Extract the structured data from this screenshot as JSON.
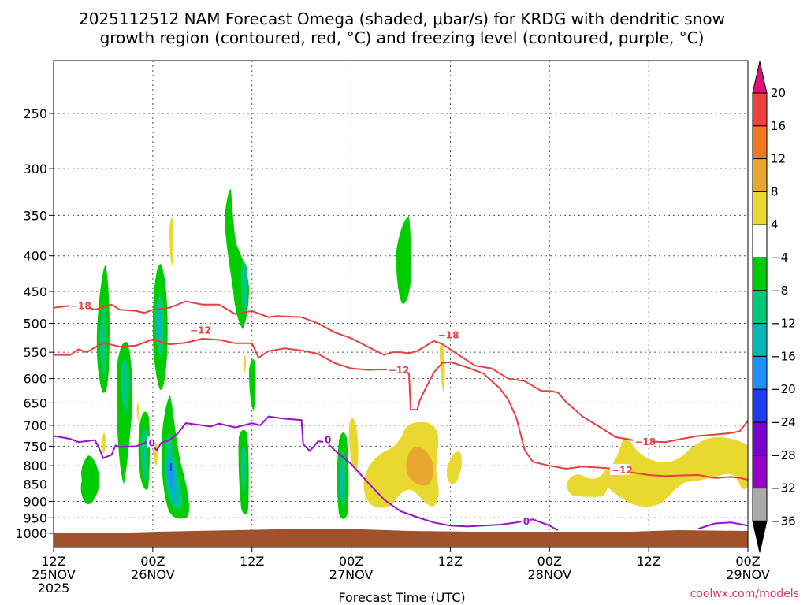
{
  "chart_data": {
    "type": "time-height cross-section",
    "title_line1": "2025112512 NAM Forecast Omega (shaded, μbar/s) for KRDG with dendritic snow",
    "title_line2": "growth region (contoured, red, °C) and freezing level (contoured, purple, °C)",
    "xlabel": "Forecast Time (UTC)",
    "credit": "coolwx.com/models",
    "x_range_hours": [
      0,
      84
    ],
    "y_range_hPa": [
      1000,
      200
    ],
    "y_ticks": [
      250,
      300,
      350,
      400,
      450,
      500,
      550,
      600,
      650,
      700,
      750,
      800,
      850,
      900,
      950,
      1000
    ],
    "x_ticks": [
      {
        "hour": 0,
        "line1": "12Z",
        "line2": "25NOV",
        "line3": "2025"
      },
      {
        "hour": 12,
        "line1": "00Z",
        "line2": "26NOV",
        "line3": ""
      },
      {
        "hour": 24,
        "line1": "12Z",
        "line2": "",
        "line3": ""
      },
      {
        "hour": 36,
        "line1": "00Z",
        "line2": "27NOV",
        "line3": ""
      },
      {
        "hour": 48,
        "line1": "12Z",
        "line2": "",
        "line3": ""
      },
      {
        "hour": 60,
        "line1": "00Z",
        "line2": "28NOV",
        "line3": ""
      },
      {
        "hour": 72,
        "line1": "12Z",
        "line2": "",
        "line3": ""
      },
      {
        "hour": 84,
        "line1": "00Z",
        "line2": "29NOV",
        "line3": ""
      }
    ],
    "colorbar": {
      "ticks": [
        "20",
        "16",
        "12",
        "8",
        "4",
        "−4",
        "−8",
        "−12",
        "−16",
        "−20",
        "−24",
        "−28",
        "−32",
        "−36"
      ],
      "colors": [
        "#ee3f3f",
        "#f07820",
        "#e8a830",
        "#e8d830",
        "#ffffff",
        "#00cc00",
        "#00c87a",
        "#00b8b8",
        "#1e90ff",
        "#1e3cf0",
        "#7a00cc",
        "#9a00c8",
        "#aaaaaa"
      ],
      "top_arrow_color": "#e0107a",
      "bottom_arrow_color": "#000000"
    },
    "contours": [
      {
        "name": "-18",
        "color": "#e84040",
        "points": [
          [
            0,
            475
          ],
          [
            3,
            470
          ],
          [
            5,
            478
          ],
          [
            7,
            470
          ],
          [
            8,
            478
          ],
          [
            10,
            480
          ],
          [
            11,
            483
          ],
          [
            12,
            478
          ],
          [
            14,
            475
          ],
          [
            16,
            465
          ],
          [
            18,
            470
          ],
          [
            20,
            470
          ],
          [
            22,
            485
          ],
          [
            24,
            480
          ],
          [
            26,
            490
          ],
          [
            27,
            488
          ],
          [
            30,
            490
          ],
          [
            32,
            500
          ],
          [
            34,
            515
          ],
          [
            36,
            525
          ],
          [
            38,
            540
          ],
          [
            40,
            555
          ],
          [
            41,
            550
          ],
          [
            42,
            550
          ],
          [
            43,
            552
          ],
          [
            44,
            548
          ],
          [
            46,
            530
          ],
          [
            47,
            535
          ],
          [
            49,
            555
          ],
          [
            51,
            575
          ],
          [
            53,
            580
          ],
          [
            55,
            600
          ],
          [
            57,
            605
          ],
          [
            59,
            625
          ],
          [
            60,
            625
          ],
          [
            61,
            628
          ],
          [
            62,
            648
          ],
          [
            64,
            680
          ],
          [
            66,
            703
          ],
          [
            68,
            728
          ],
          [
            70,
            735
          ],
          [
            72,
            738
          ],
          [
            74,
            740
          ],
          [
            76,
            732
          ],
          [
            78,
            725
          ],
          [
            80,
            722
          ],
          [
            82,
            718
          ],
          [
            83,
            714
          ],
          [
            84,
            690
          ]
        ],
        "labels": [
          {
            "text": "−18",
            "at": [
              2,
              472
            ]
          },
          {
            "text": "−18",
            "at": [
              46.5,
              520
            ]
          },
          {
            "text": "−18",
            "at": [
              70.3,
              740
            ]
          }
        ]
      },
      {
        "name": "-12",
        "color": "#e84040",
        "points": [
          [
            0,
            555
          ],
          [
            2,
            555
          ],
          [
            3,
            545
          ],
          [
            4,
            550
          ],
          [
            6,
            533
          ],
          [
            8,
            540
          ],
          [
            10,
            538
          ],
          [
            12,
            527
          ],
          [
            14,
            536
          ],
          [
            16,
            533
          ],
          [
            18,
            526
          ],
          [
            20,
            528
          ],
          [
            22,
            534
          ],
          [
            24,
            534
          ],
          [
            24.8,
            560
          ],
          [
            26,
            548
          ],
          [
            28,
            543
          ],
          [
            30,
            547
          ],
          [
            32,
            553
          ],
          [
            34,
            570
          ],
          [
            36,
            580
          ],
          [
            38,
            583
          ],
          [
            40,
            582
          ],
          [
            42,
            588
          ],
          [
            43,
            590
          ],
          [
            43.2,
            665
          ],
          [
            44,
            665
          ],
          [
            44.3,
            645
          ],
          [
            45,
            620
          ],
          [
            46,
            588
          ],
          [
            47,
            570
          ],
          [
            48,
            568
          ],
          [
            50,
            578
          ],
          [
            52,
            590
          ],
          [
            54,
            620
          ],
          [
            55,
            643
          ],
          [
            56,
            683
          ],
          [
            57,
            760
          ],
          [
            58,
            790
          ],
          [
            60,
            800
          ],
          [
            62,
            808
          ],
          [
            64,
            802
          ],
          [
            66,
            805
          ],
          [
            68,
            808
          ],
          [
            70,
            818
          ],
          [
            72,
            825
          ],
          [
            74,
            828
          ],
          [
            76,
            826
          ],
          [
            78,
            825
          ],
          [
            80,
            833
          ],
          [
            82,
            830
          ],
          [
            83,
            833
          ],
          [
            84,
            838
          ]
        ],
        "labels": [
          {
            "text": "−12",
            "at": [
              16.5,
              512
            ]
          },
          {
            "text": "−12",
            "at": [
              40.5,
              584
            ]
          },
          {
            "text": "−12",
            "at": [
              67.5,
              812
            ]
          }
        ]
      },
      {
        "name": "0",
        "color": "#9a10cc",
        "points": [
          [
            0,
            725
          ],
          [
            2,
            732
          ],
          [
            3,
            740
          ],
          [
            5,
            735
          ],
          [
            5.5,
            755
          ],
          [
            6,
            780
          ],
          [
            7,
            772
          ],
          [
            7.5,
            748
          ],
          [
            8,
            752
          ],
          [
            10,
            750
          ],
          [
            11.5,
            738
          ],
          [
            12.5,
            760
          ],
          [
            13,
            742
          ],
          [
            14,
            735
          ],
          [
            15,
            720
          ],
          [
            16,
            695
          ],
          [
            18,
            700
          ],
          [
            19,
            703
          ],
          [
            20,
            696
          ],
          [
            22,
            705
          ],
          [
            24,
            695
          ],
          [
            25,
            700
          ],
          [
            26,
            680
          ],
          [
            28,
            685
          ],
          [
            30,
            688
          ],
          [
            30.2,
            745
          ],
          [
            31,
            762
          ],
          [
            32,
            738
          ],
          [
            33,
            740
          ],
          [
            34,
            760
          ],
          [
            36,
            795
          ],
          [
            38,
            845
          ],
          [
            40,
            895
          ],
          [
            42,
            930
          ],
          [
            44,
            948
          ],
          [
            46,
            965
          ],
          [
            48,
            975
          ],
          [
            50,
            978
          ],
          [
            52,
            975
          ],
          [
            54,
            972
          ],
          [
            56,
            965
          ],
          [
            58,
            955
          ],
          [
            60,
            975
          ],
          [
            61,
            990
          ]
        ],
        "labels": [
          {
            "text": "0",
            "at": [
              11.5,
              742
            ]
          },
          {
            "text": "0",
            "at": [
              32.8,
              735
            ]
          },
          {
            "text": "0",
            "at": [
              56.8,
              962
            ]
          }
        ]
      },
      {
        "name": "0b",
        "color": "#9a10cc",
        "points": [
          [
            78,
            985
          ],
          [
            80,
            968
          ],
          [
            82,
            965
          ],
          [
            84,
            975
          ]
        ],
        "labels": []
      }
    ],
    "terrain": {
      "color": "#a0522d",
      "top_hPa": 995,
      "label": "surface"
    }
  }
}
